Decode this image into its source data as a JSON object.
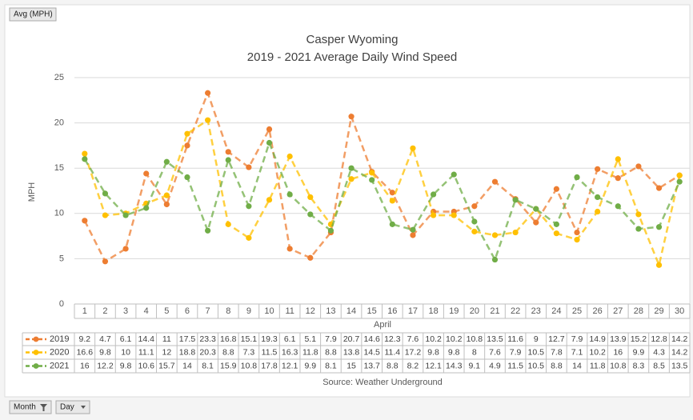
{
  "buttons": {
    "field": "Avg (MPH)",
    "month": "Month",
    "day": "Day"
  },
  "chart_data": {
    "type": "line",
    "title": "Casper Wyoming",
    "subtitle": "2019 - 2021 Average Daily Wind Speed",
    "y_label": "MPH",
    "x_label": "April",
    "source": "Source: Weather Underground",
    "categories": [
      "1",
      "2",
      "3",
      "4",
      "5",
      "6",
      "7",
      "8",
      "9",
      "10",
      "11",
      "12",
      "13",
      "14",
      "15",
      "16",
      "17",
      "18",
      "19",
      "20",
      "21",
      "22",
      "23",
      "24",
      "25",
      "26",
      "27",
      "28",
      "29",
      "30"
    ],
    "series": [
      {
        "name": "2019",
        "color": "#ed7d31",
        "values": [
          9.2,
          4.7,
          6.1,
          14.4,
          11,
          17.5,
          23.3,
          16.8,
          15.1,
          19.3,
          6.1,
          5.1,
          7.9,
          20.7,
          14.6,
          12.3,
          7.6,
          10.2,
          10.2,
          10.8,
          13.5,
          11.6,
          9,
          12.7,
          7.9,
          14.9,
          13.9,
          15.2,
          12.8,
          14.2
        ]
      },
      {
        "name": "2020",
        "color": "#ffc000",
        "values": [
          16.6,
          9.8,
          10,
          11.1,
          12,
          18.8,
          20.3,
          8.8,
          7.3,
          11.5,
          16.3,
          11.8,
          8.8,
          13.8,
          14.5,
          11.4,
          17.2,
          9.8,
          9.8,
          8,
          7.6,
          7.9,
          10.5,
          7.8,
          7.1,
          10.2,
          16,
          9.9,
          4.3,
          14.2
        ]
      },
      {
        "name": "2021",
        "color": "#70ad47",
        "values": [
          16,
          12.2,
          9.8,
          10.6,
          15.7,
          14,
          8.1,
          15.9,
          10.8,
          17.8,
          12.1,
          9.9,
          8.1,
          15,
          13.7,
          8.8,
          8.2,
          12.1,
          14.3,
          9.1,
          4.9,
          11.5,
          10.5,
          8.8,
          14,
          11.8,
          10.8,
          8.3,
          8.5,
          13.5
        ]
      }
    ],
    "ylim": [
      0,
      25
    ],
    "yticks": [
      0,
      5,
      10,
      15,
      20,
      25
    ],
    "grid": true,
    "line_style": "dashed"
  }
}
